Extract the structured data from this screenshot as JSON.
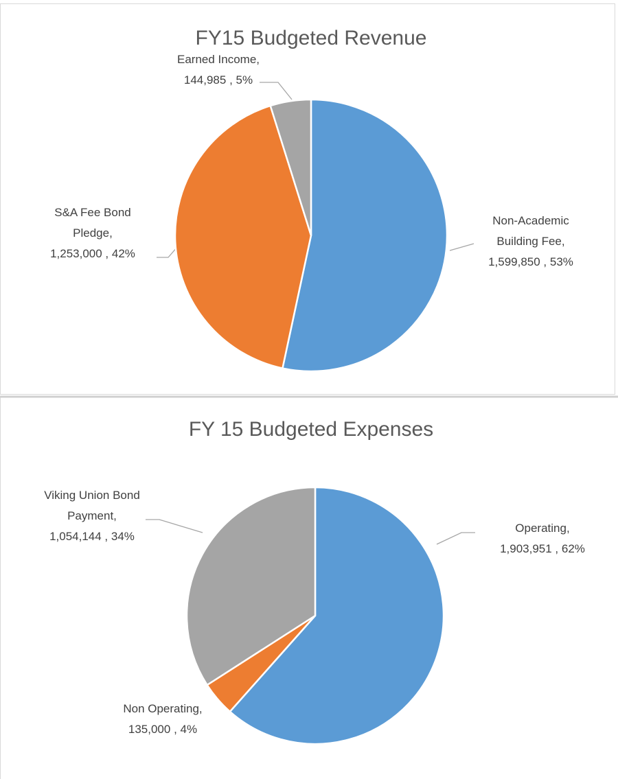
{
  "chart_data": [
    {
      "type": "pie",
      "title": "FY15 Budgeted Revenue",
      "categories": [
        "Non-Academic Building Fee,",
        "S&A Fee Bond Pledge,",
        "Earned Income,"
      ],
      "values": [
        1599850,
        1253000,
        144985
      ],
      "value_labels": [
        "1,599,850 , 53%",
        "1,253,000 , 42%",
        "144,985 , 5%"
      ],
      "colors": [
        "#5b9bd5",
        "#ed7d31",
        "#a5a5a5"
      ]
    },
    {
      "type": "pie",
      "title": "FY 15 Budgeted Expenses",
      "categories": [
        "Operating,",
        "Non Operating,",
        "Viking Union Bond Payment,"
      ],
      "values": [
        1903951,
        135000,
        1054144
      ],
      "value_labels": [
        "1,903,951 , 62%",
        "135,000 , 4%",
        "1,054,144 , 34%"
      ],
      "colors": [
        "#5b9bd5",
        "#ed7d31",
        "#a5a5a5"
      ]
    }
  ]
}
